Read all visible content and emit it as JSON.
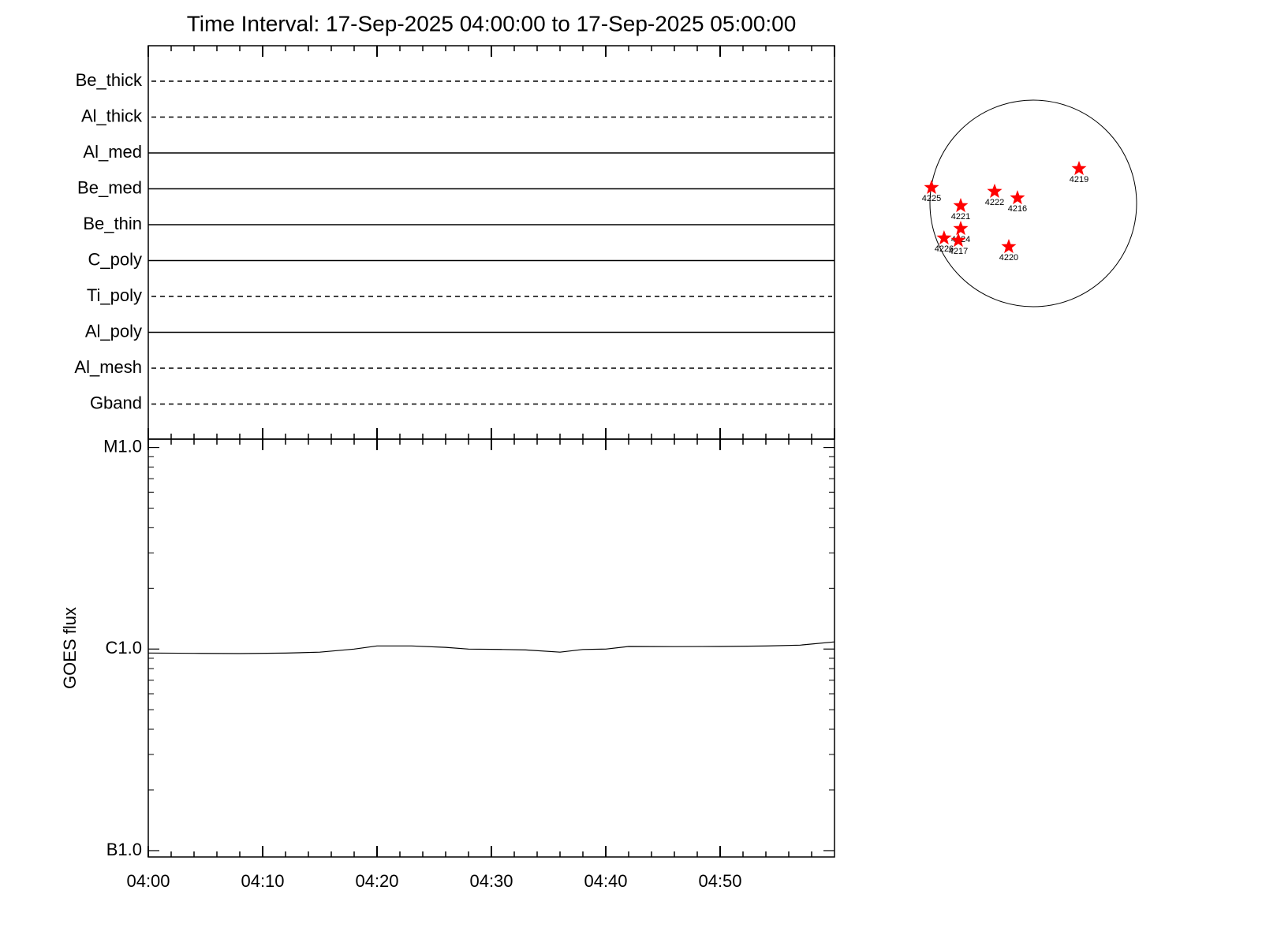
{
  "chart_data": [
    {
      "type": "filters",
      "title": "Time Interval: 17-Sep-2025 04:00:00 to 17-Sep-2025 05:00:00",
      "categories": [
        "Be_thick",
        "Al_thick",
        "Al_med",
        "Be_med",
        "Be_thin",
        "C_poly",
        "Ti_poly",
        "Al_poly",
        "Al_mesh",
        "Gband"
      ],
      "styles": [
        "dashed",
        "dashed",
        "solid",
        "solid",
        "solid",
        "solid",
        "dashed",
        "solid",
        "dashed",
        "dashed"
      ]
    },
    {
      "type": "line",
      "ylabel": "GOES flux",
      "color": "#000000",
      "log_y": true,
      "x": [
        "04:00",
        "04:04",
        "04:08",
        "04:12",
        "04:15",
        "04:18",
        "04:20",
        "04:23",
        "04:26",
        "04:28",
        "04:31",
        "04:33",
        "04:36",
        "04:38",
        "04:40",
        "04:42",
        "04:46",
        "04:50",
        "04:54",
        "04:57",
        "05:00"
      ],
      "values": [
        9.56e-07,
        9.52e-07,
        9.5e-07,
        9.55e-07,
        9.65e-07,
        1e-06,
        1.036e-06,
        1.036e-06,
        1.02e-06,
        1e-06,
        9.95e-07,
        9.9e-07,
        9.65e-07,
        9.95e-07,
        1e-06,
        1.03e-06,
        1.028e-06,
        1.03e-06,
        1.035e-06,
        1.046e-06,
        1.085e-06
      ],
      "xlim": [
        "04:00",
        "05:00"
      ],
      "xticks": [
        "04:00",
        "04:10",
        "04:20",
        "04:30",
        "04:40",
        "04:50"
      ],
      "ylim": [
        9.3e-08,
        1.1e-05
      ],
      "yticks": [
        {
          "value": 1e-07,
          "label": "B1.0"
        },
        {
          "value": 1e-06,
          "label": "C1.0"
        },
        {
          "value": 1e-05,
          "label": "M1.0"
        }
      ]
    },
    {
      "type": "disk",
      "color": "#ff0000",
      "regions": [
        {
          "label": "4225",
          "x": -0.985,
          "y": 0.153
        },
        {
          "label": "4221",
          "x": -0.702,
          "y": -0.023
        },
        {
          "label": "4222",
          "x": -0.374,
          "y": 0.115
        },
        {
          "label": "4216",
          "x": -0.153,
          "y": 0.053
        },
        {
          "label": "4219",
          "x": 0.443,
          "y": 0.336
        },
        {
          "label": "4224",
          "x": -0.702,
          "y": -0.244
        },
        {
          "label": "4217",
          "x": -0.725,
          "y": -0.359
        },
        {
          "label": "4226",
          "x": -0.863,
          "y": -0.336
        },
        {
          "label": "4220",
          "x": -0.237,
          "y": -0.42
        }
      ]
    }
  ]
}
